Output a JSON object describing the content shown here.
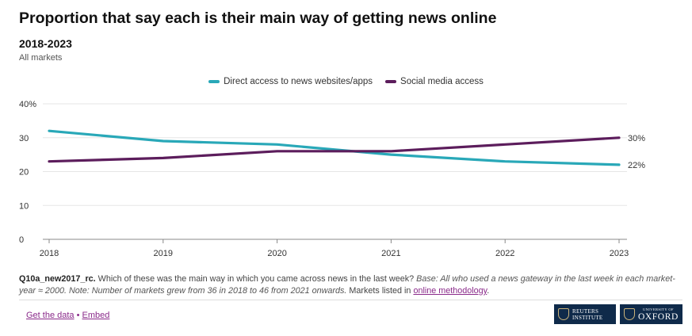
{
  "header": {
    "title": "Proportion that say each is their main way of getting news online",
    "subtitle": "2018-2023",
    "market": "All markets"
  },
  "chart_data": {
    "type": "line",
    "title": "Proportion that say each is their main way of getting news online",
    "subtitle": "2018-2023",
    "x": [
      2018,
      2019,
      2020,
      2021,
      2022,
      2023
    ],
    "series": [
      {
        "name": "Direct access to news websites/apps",
        "color": "#29a8b8",
        "values": [
          32,
          29,
          28,
          25,
          23,
          22
        ],
        "end_label": "22%"
      },
      {
        "name": "Social media access",
        "color": "#5c1d5c",
        "values": [
          23,
          24,
          26,
          26,
          28,
          30
        ],
        "end_label": "30%"
      }
    ],
    "ylim": [
      0,
      40
    ],
    "yticks": [
      "0",
      "10",
      "20",
      "30",
      "40%"
    ],
    "xticks": [
      "2018",
      "2019",
      "2020",
      "2021",
      "2022",
      "2023"
    ],
    "legend": "top-center",
    "grid": true
  },
  "notes": {
    "code": "Q10a_new2017_rc.",
    "question": " Which of these was the main way in which you came across news in the last week? ",
    "base": "Base: All who used a news gateway in the last week in each market-year ≈ 2000. Note: Number of markets grew from 36 in 2018 to 46 from 2021 onwards.",
    "markets_text": " Markets listed in ",
    "methodology_link": "online methodology",
    "end": "."
  },
  "footer": {
    "get_data": "Get the data",
    "separator": " • ",
    "embed": "Embed",
    "reuters_line1": "REUTERS",
    "reuters_line2": "INSTITUTE",
    "oxford_small": "UNIVERSITY OF",
    "oxford_big": "OXFORD"
  }
}
